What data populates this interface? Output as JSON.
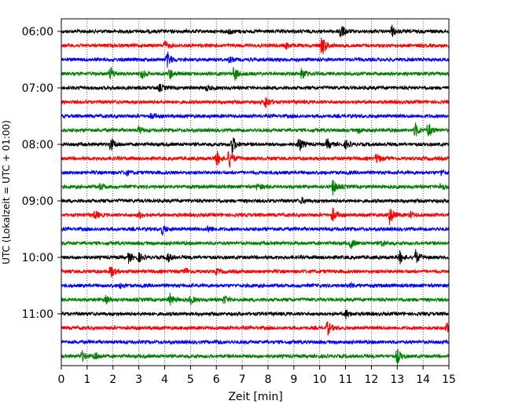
{
  "chart_data": {
    "type": "line",
    "title": "",
    "xlabel": "Zeit  [min]",
    "ylabel": "UTC (Lokalzeit = UTC + 01:00)",
    "xlim": [
      0,
      15
    ],
    "x_ticks": [
      "0",
      "1",
      "2",
      "3",
      "4",
      "5",
      "6",
      "7",
      "8",
      "9",
      "10",
      "11",
      "12",
      "13",
      "14",
      "15"
    ],
    "y_ticks": [
      "06:00",
      "07:00",
      "08:00",
      "09:00",
      "10:00",
      "11:00"
    ],
    "grid": "vertical dotted",
    "colors_cycle": [
      "#000000",
      "#ff0000",
      "#0000ff",
      "#008000"
    ],
    "traces": [
      {
        "color": "#000000",
        "events": [
          [
            10.8,
            1.0
          ],
          [
            12.8,
            0.6
          ],
          [
            6.5,
            0.3
          ]
        ]
      },
      {
        "color": "#ff0000",
        "events": [
          [
            4.0,
            0.5
          ],
          [
            8.7,
            0.4
          ],
          [
            10.1,
            1.2
          ]
        ]
      },
      {
        "color": "#0000ff",
        "events": [
          [
            4.1,
            0.9
          ],
          [
            6.5,
            0.3
          ]
        ]
      },
      {
        "color": "#008000",
        "events": [
          [
            1.9,
            0.8
          ],
          [
            3.1,
            0.7
          ],
          [
            4.2,
            0.6
          ],
          [
            6.7,
            0.9
          ],
          [
            9.3,
            0.8
          ]
        ]
      },
      {
        "color": "#000000",
        "events": [
          [
            3.8,
            0.4
          ],
          [
            5.6,
            0.3
          ]
        ]
      },
      {
        "color": "#ff0000",
        "events": [
          [
            7.9,
            0.8
          ]
        ]
      },
      {
        "color": "#0000ff",
        "events": [
          [
            3.5,
            0.3
          ]
        ]
      },
      {
        "color": "#008000",
        "events": [
          [
            3.0,
            0.4
          ],
          [
            11.5,
            0.3
          ],
          [
            13.7,
            0.8
          ],
          [
            14.2,
            0.9
          ]
        ]
      },
      {
        "color": "#000000",
        "events": [
          [
            1.9,
            0.9
          ],
          [
            6.6,
            1.2
          ],
          [
            9.2,
            0.9
          ],
          [
            10.3,
            0.6
          ],
          [
            11.0,
            0.5
          ]
        ]
      },
      {
        "color": "#ff0000",
        "events": [
          [
            6.0,
            1.0
          ],
          [
            6.5,
            1.1
          ],
          [
            12.2,
            0.6
          ]
        ]
      },
      {
        "color": "#0000ff",
        "events": [
          [
            2.5,
            0.3
          ],
          [
            14.7,
            0.3
          ]
        ]
      },
      {
        "color": "#008000",
        "events": [
          [
            1.5,
            0.4
          ],
          [
            7.6,
            0.4
          ],
          [
            10.5,
            1.0
          ],
          [
            14.7,
            0.5
          ]
        ]
      },
      {
        "color": "#000000",
        "events": [
          [
            9.3,
            0.3
          ]
        ]
      },
      {
        "color": "#ff0000",
        "events": [
          [
            1.3,
            0.5
          ],
          [
            3.0,
            0.4
          ],
          [
            10.5,
            0.8
          ],
          [
            12.7,
            1.2
          ],
          [
            13.5,
            0.4
          ]
        ]
      },
      {
        "color": "#0000ff",
        "events": [
          [
            3.9,
            0.6
          ],
          [
            5.7,
            0.4
          ]
        ]
      },
      {
        "color": "#008000",
        "events": [
          [
            11.2,
            0.6
          ],
          [
            12.4,
            0.4
          ]
        ]
      },
      {
        "color": "#000000",
        "events": [
          [
            2.6,
            0.6
          ],
          [
            3.0,
            0.5
          ],
          [
            4.1,
            0.6
          ],
          [
            13.1,
            0.7
          ],
          [
            13.7,
            0.9
          ]
        ]
      },
      {
        "color": "#ff0000",
        "events": [
          [
            1.9,
            0.8
          ],
          [
            4.8,
            0.4
          ],
          [
            6.0,
            0.3
          ]
        ]
      },
      {
        "color": "#0000ff",
        "events": [
          [
            2.3,
            0.3
          ],
          [
            11.2,
            0.3
          ]
        ]
      },
      {
        "color": "#008000",
        "events": [
          [
            1.7,
            0.6
          ],
          [
            4.2,
            0.7
          ],
          [
            5.0,
            0.5
          ],
          [
            6.3,
            0.5
          ]
        ]
      },
      {
        "color": "#000000",
        "events": [
          [
            11.0,
            0.5
          ]
        ]
      },
      {
        "color": "#ff0000",
        "events": [
          [
            10.3,
            0.8
          ],
          [
            14.9,
            0.6
          ]
        ]
      },
      {
        "color": "#0000ff",
        "events": [
          [
            6.0,
            0.2
          ]
        ]
      },
      {
        "color": "#008000",
        "events": [
          [
            0.8,
            0.6
          ],
          [
            1.3,
            0.5
          ],
          [
            13.0,
            0.9
          ]
        ]
      }
    ]
  }
}
